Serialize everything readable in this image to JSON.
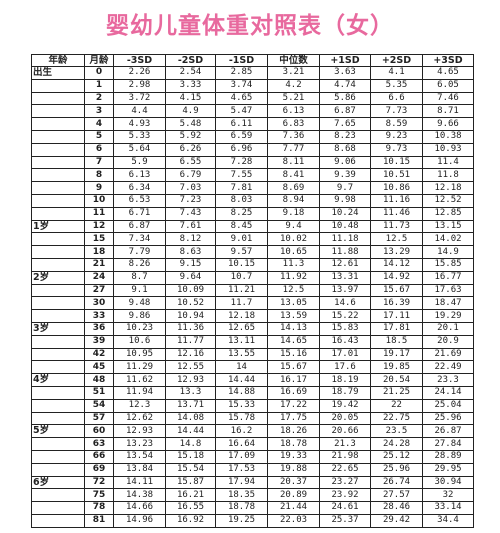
{
  "title": "婴幼儿童体重对照表（女）",
  "headers": {
    "age": "年龄",
    "month": "月龄",
    "sd_minus3": "-3SD",
    "sd_minus2": "-2SD",
    "sd_minus1": "-1SD",
    "median": "中位数",
    "sd_plus1": "+1SD",
    "sd_plus2": "+2SD",
    "sd_plus3": "+3SD"
  },
  "rows": [
    {
      "age": "出生",
      "month": "0",
      "values": [
        "2.26",
        "2.54",
        "2.85",
        "3.21",
        "3.63",
        "4.1",
        "4.65"
      ]
    },
    {
      "age": "",
      "month": "1",
      "values": [
        "2.98",
        "3.33",
        "3.74",
        "4.2",
        "4.74",
        "5.35",
        "6.05"
      ]
    },
    {
      "age": "",
      "month": "2",
      "values": [
        "3.72",
        "4.15",
        "4.65",
        "5.21",
        "5.86",
        "6.6",
        "7.46"
      ]
    },
    {
      "age": "",
      "month": "3",
      "values": [
        "4.4",
        "4.9",
        "5.47",
        "6.13",
        "6.87",
        "7.73",
        "8.71"
      ]
    },
    {
      "age": "",
      "month": "4",
      "values": [
        "4.93",
        "5.48",
        "6.11",
        "6.83",
        "7.65",
        "8.59",
        "9.66"
      ]
    },
    {
      "age": "",
      "month": "5",
      "values": [
        "5.33",
        "5.92",
        "6.59",
        "7.36",
        "8.23",
        "9.23",
        "10.38"
      ]
    },
    {
      "age": "",
      "month": "6",
      "values": [
        "5.64",
        "6.26",
        "6.96",
        "7.77",
        "8.68",
        "9.73",
        "10.93"
      ]
    },
    {
      "age": "",
      "month": "7",
      "values": [
        "5.9",
        "6.55",
        "7.28",
        "8.11",
        "9.06",
        "10.15",
        "11.4"
      ]
    },
    {
      "age": "",
      "month": "8",
      "values": [
        "6.13",
        "6.79",
        "7.55",
        "8.41",
        "9.39",
        "10.51",
        "11.8"
      ]
    },
    {
      "age": "",
      "month": "9",
      "values": [
        "6.34",
        "7.03",
        "7.81",
        "8.69",
        "9.7",
        "10.86",
        "12.18"
      ]
    },
    {
      "age": "",
      "month": "10",
      "values": [
        "6.53",
        "7.23",
        "8.03",
        "8.94",
        "9.98",
        "11.16",
        "12.52"
      ]
    },
    {
      "age": "",
      "month": "11",
      "values": [
        "6.71",
        "7.43",
        "8.25",
        "9.18",
        "10.24",
        "11.46",
        "12.85"
      ]
    },
    {
      "age": "1岁",
      "month": "12",
      "values": [
        "6.87",
        "7.61",
        "8.45",
        "9.4",
        "10.48",
        "11.73",
        "13.15"
      ]
    },
    {
      "age": "",
      "month": "15",
      "values": [
        "7.34",
        "8.12",
        "9.01",
        "10.02",
        "11.18",
        "12.5",
        "14.02"
      ]
    },
    {
      "age": "",
      "month": "18",
      "values": [
        "7.79",
        "8.63",
        "9.57",
        "10.65",
        "11.88",
        "13.29",
        "14.9"
      ]
    },
    {
      "age": "",
      "month": "21",
      "values": [
        "8.26",
        "9.15",
        "10.15",
        "11.3",
        "12.61",
        "14.12",
        "15.85"
      ]
    },
    {
      "age": "2岁",
      "month": "24",
      "values": [
        "8.7",
        "9.64",
        "10.7",
        "11.92",
        "13.31",
        "14.92",
        "16.77"
      ]
    },
    {
      "age": "",
      "month": "27",
      "values": [
        "9.1",
        "10.09",
        "11.21",
        "12.5",
        "13.97",
        "15.67",
        "17.63"
      ]
    },
    {
      "age": "",
      "month": "30",
      "values": [
        "9.48",
        "10.52",
        "11.7",
        "13.05",
        "14.6",
        "16.39",
        "18.47"
      ]
    },
    {
      "age": "",
      "month": "33",
      "values": [
        "9.86",
        "10.94",
        "12.18",
        "13.59",
        "15.22",
        "17.11",
        "19.29"
      ]
    },
    {
      "age": "3岁",
      "month": "36",
      "values": [
        "10.23",
        "11.36",
        "12.65",
        "14.13",
        "15.83",
        "17.81",
        "20.1"
      ]
    },
    {
      "age": "",
      "month": "39",
      "values": [
        "10.6",
        "11.77",
        "13.11",
        "14.65",
        "16.43",
        "18.5",
        "20.9"
      ]
    },
    {
      "age": "",
      "month": "42",
      "values": [
        "10.95",
        "12.16",
        "13.55",
        "15.16",
        "17.01",
        "19.17",
        "21.69"
      ]
    },
    {
      "age": "",
      "month": "45",
      "values": [
        "11.29",
        "12.55",
        "14",
        "15.67",
        "17.6",
        "19.85",
        "22.49"
      ]
    },
    {
      "age": "4岁",
      "month": "48",
      "values": [
        "11.62",
        "12.93",
        "14.44",
        "16.17",
        "18.19",
        "20.54",
        "23.3"
      ]
    },
    {
      "age": "",
      "month": "51",
      "values": [
        "11.94",
        "13.3",
        "14.88",
        "16.69",
        "18.79",
        "21.25",
        "24.14"
      ]
    },
    {
      "age": "",
      "month": "54",
      "values": [
        "12.3",
        "13.71",
        "15.33",
        "17.22",
        "19.42",
        "22",
        "25.04"
      ]
    },
    {
      "age": "",
      "month": "57",
      "values": [
        "12.62",
        "14.08",
        "15.78",
        "17.75",
        "20.05",
        "22.75",
        "25.96"
      ]
    },
    {
      "age": "5岁",
      "month": "60",
      "values": [
        "12.93",
        "14.44",
        "16.2",
        "18.26",
        "20.66",
        "23.5",
        "26.87"
      ]
    },
    {
      "age": "",
      "month": "63",
      "values": [
        "13.23",
        "14.8",
        "16.64",
        "18.78",
        "21.3",
        "24.28",
        "27.84"
      ]
    },
    {
      "age": "",
      "month": "66",
      "values": [
        "13.54",
        "15.18",
        "17.09",
        "19.33",
        "21.98",
        "25.12",
        "28.89"
      ]
    },
    {
      "age": "",
      "month": "69",
      "values": [
        "13.84",
        "15.54",
        "17.53",
        "19.88",
        "22.65",
        "25.96",
        "29.95"
      ]
    },
    {
      "age": "6岁",
      "month": "72",
      "values": [
        "14.11",
        "15.87",
        "17.94",
        "20.37",
        "23.27",
        "26.74",
        "30.94"
      ]
    },
    {
      "age": "",
      "month": "75",
      "values": [
        "14.38",
        "16.21",
        "18.35",
        "20.89",
        "23.92",
        "27.57",
        "32"
      ]
    },
    {
      "age": "",
      "month": "78",
      "values": [
        "14.66",
        "16.55",
        "18.78",
        "21.44",
        "24.61",
        "28.46",
        "33.14"
      ]
    },
    {
      "age": "",
      "month": "81",
      "values": [
        "14.96",
        "16.92",
        "19.25",
        "22.03",
        "25.37",
        "29.42",
        "34.4"
      ]
    }
  ]
}
